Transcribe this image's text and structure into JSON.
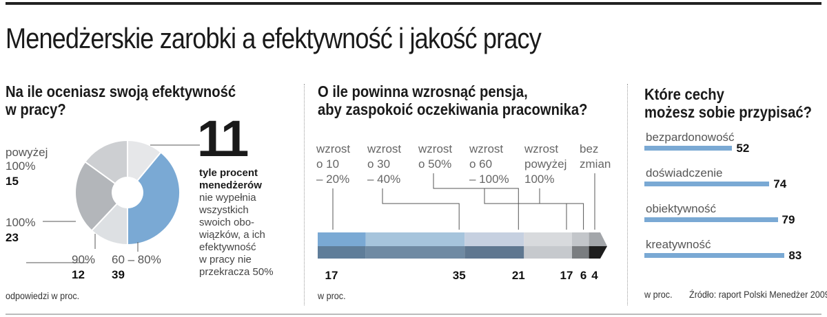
{
  "title": "Menedżerskie zarobki a efektywność i jakość pracy",
  "chart_data": [
    {
      "type": "pie",
      "title_lines": [
        "Na ile oceniasz swoją efektywność",
        "w pracy?"
      ],
      "categories": [
        "60 – 80%",
        "90%",
        "100%",
        "powyżej 100%",
        "50%"
      ],
      "values": [
        39,
        12,
        23,
        15,
        11
      ],
      "colors": [
        "#7aa9d4",
        "#dde0e3",
        "#b3b6ba",
        "#cdcfd2",
        "#e6e7e9"
      ],
      "labels": {
        "c60": "60 – 80%",
        "v60": "39",
        "c90": "90%",
        "v90": "12",
        "c100": "100%",
        "v100": "23",
        "c_pow_1": "powyżej",
        "c_pow_2": "100%",
        "v_pow": "15"
      },
      "highlight": {
        "value": "11",
        "bold_lines": [
          "tyle procent",
          "menedżerów"
        ],
        "lines": [
          "nie wypełnia",
          "wszystkich",
          "swoich obo-",
          "wiązków, a ich",
          "efektywność",
          "w pracy nie",
          "przekracza 50%"
        ]
      },
      "footnote": "odpowiedzi w proc."
    },
    {
      "type": "bar",
      "stacked": true,
      "title_lines": [
        "O ile powinna wzrosnąć pensja,",
        "aby zaspokoić oczekiwania pracownika?"
      ],
      "categories": [
        [
          "wzrost",
          "o 10",
          "– 20%"
        ],
        [
          "wzrost",
          "o 30",
          "– 40%"
        ],
        [
          "wzrost",
          "o 50%"
        ],
        [
          "wzrost",
          "o 60",
          "– 100%"
        ],
        [
          "wzrost",
          "powyżej",
          "100%"
        ],
        [
          "bez",
          "zmian"
        ]
      ],
      "values": [
        17,
        35,
        21,
        17,
        6,
        4
      ],
      "value_labels": [
        "17",
        "35",
        "21",
        "17",
        "6",
        "4"
      ],
      "colors_top": [
        "#7aa9d4",
        "#a6c4dc",
        "#c6d0e0",
        "#d8dadd",
        "#c3c6ca",
        "#a3a6aa"
      ],
      "colors_bottom": [
        "#5f7d99",
        "#6f8aa3",
        "#5f7790",
        "#c6c9cd",
        "#7a7d80",
        "#1d1d1d"
      ],
      "footnote": "w proc."
    },
    {
      "type": "bar",
      "orientation": "horizontal",
      "title_lines": [
        "Które cechy",
        "możesz sobie przypisać?"
      ],
      "categories": [
        "bezpardonowość",
        "doświadczenie",
        "obiektywność",
        "kreatywność"
      ],
      "values": [
        52,
        74,
        79,
        83
      ],
      "value_labels": [
        "52",
        "74",
        "79",
        "83"
      ],
      "color": "#7aa9d4",
      "footnote": "w proc.",
      "source": "Źródło: raport Polski Menedżer 2009"
    }
  ]
}
